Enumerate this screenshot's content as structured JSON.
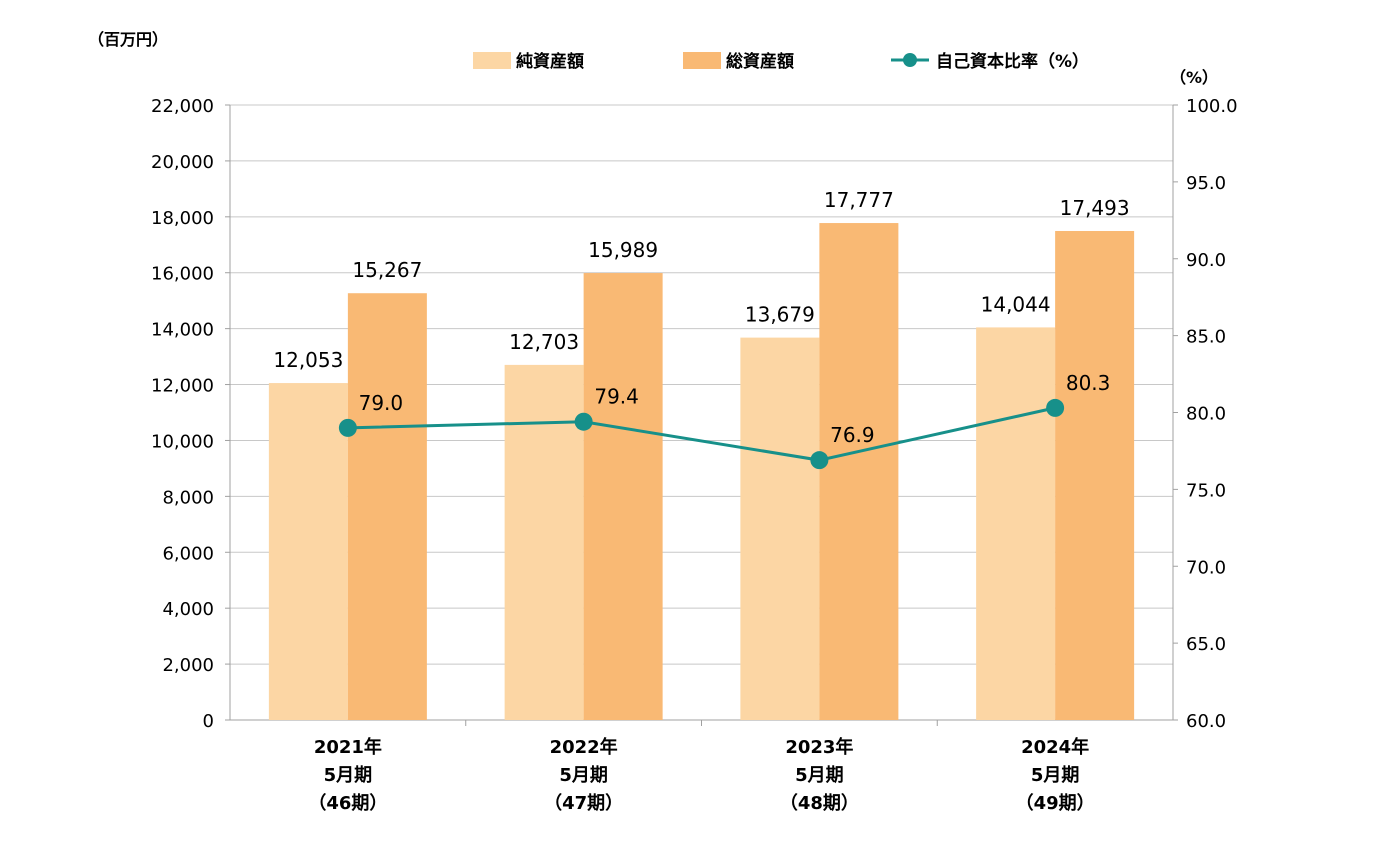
{
  "chart_data": {
    "type": "bar",
    "categories": [
      [
        "2021年",
        "5月期",
        "（46期）"
      ],
      [
        "2022年",
        "5月期",
        "（47期）"
      ],
      [
        "2023年",
        "5月期",
        "（48期）"
      ],
      [
        "2024年",
        "5月期",
        "（49期）"
      ]
    ],
    "series": [
      {
        "name": "純資産額",
        "type": "bar",
        "axis": "left",
        "color": "#fcd6a4",
        "values": [
          12053,
          12703,
          13679,
          14044
        ],
        "labels": [
          "12,053",
          "12,703",
          "13,679",
          "14,044"
        ]
      },
      {
        "name": "総資産額",
        "type": "bar",
        "axis": "left",
        "color": "#f9b974",
        "values": [
          15267,
          15989,
          17777,
          17493
        ],
        "labels": [
          "15,267",
          "15,989",
          "17,777",
          "17,493"
        ]
      },
      {
        "name": "自己資本比率（%）",
        "type": "line",
        "axis": "right",
        "color": "#17908a",
        "values": [
          79.0,
          79.4,
          76.9,
          80.3
        ],
        "labels": [
          "79.0",
          "79.4",
          "76.9",
          "80.3"
        ]
      }
    ],
    "y_left": {
      "unit": "（百万円）",
      "range": [
        0,
        22000
      ],
      "ticks": [
        0,
        2000,
        4000,
        6000,
        8000,
        10000,
        12000,
        14000,
        16000,
        18000,
        20000,
        22000
      ],
      "tick_labels": [
        "0",
        "2,000",
        "4,000",
        "6,000",
        "8,000",
        "10,000",
        "12,000",
        "14,000",
        "16,000",
        "18,000",
        "20,000",
        "22,000"
      ]
    },
    "y_right": {
      "unit": "（%）",
      "range": [
        60,
        100
      ],
      "ticks": [
        60,
        65,
        70,
        75,
        80,
        85,
        90,
        95,
        100
      ],
      "tick_labels": [
        "60.0",
        "65.0",
        "70.0",
        "75.0",
        "80.0",
        "85.0",
        "90.0",
        "95.0",
        "100.0"
      ]
    },
    "grid": true,
    "grid_color": "#c8c8c8",
    "legend_position": "top"
  }
}
